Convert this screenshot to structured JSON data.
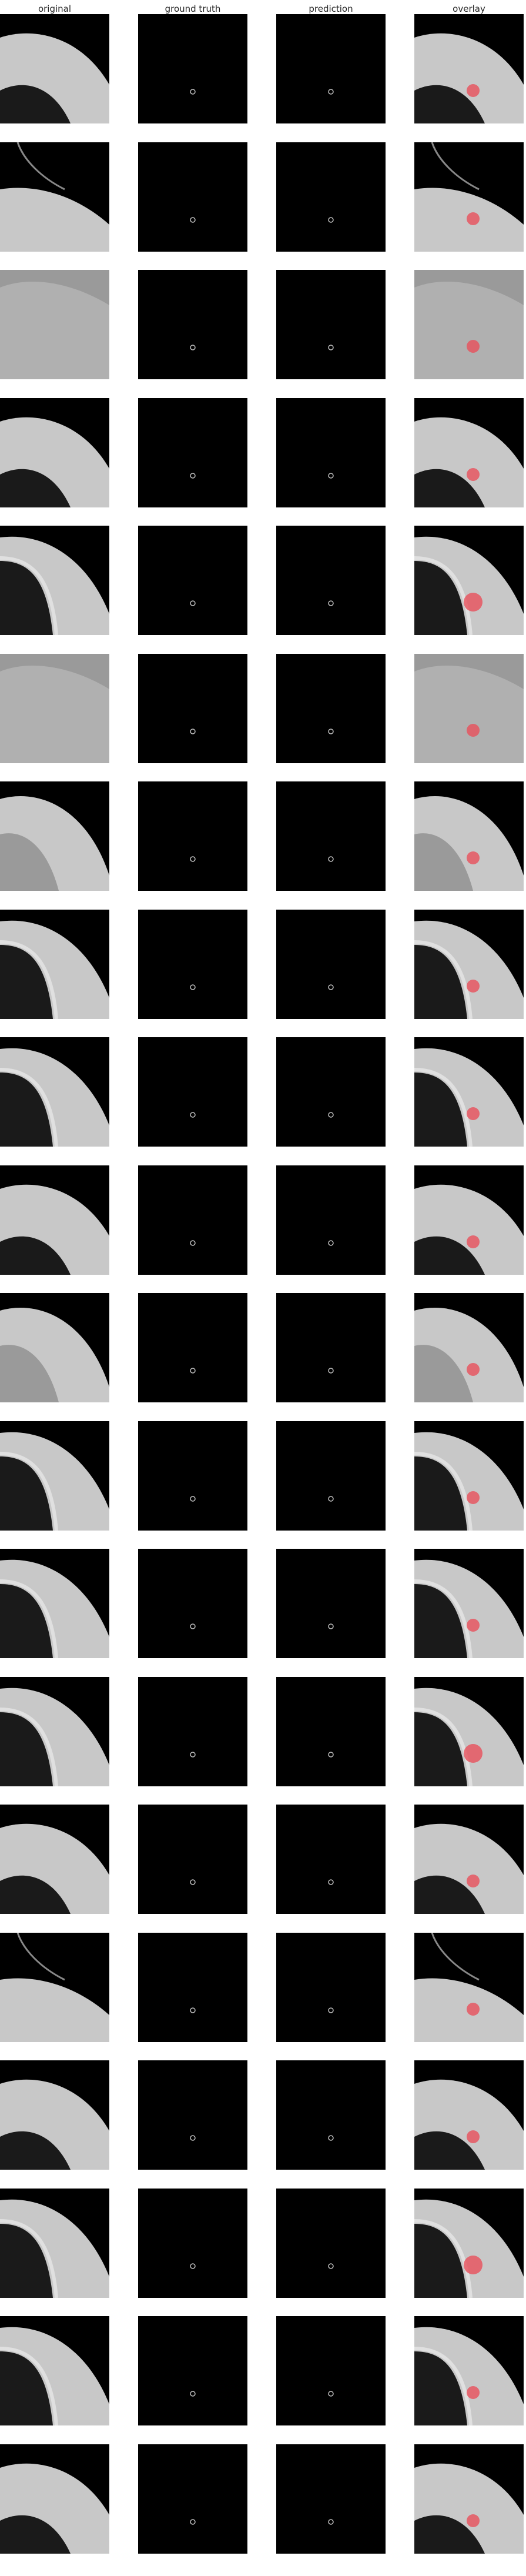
{
  "columns": {
    "original": "original",
    "ground_truth": "ground truth",
    "prediction": "prediction",
    "overlay": "overlay"
  },
  "colors": {
    "background": "#000000",
    "tissue_light": "#c8c8c8",
    "tissue_mid": "#9a9a9a",
    "lung_dark": "#1a1a1a",
    "marker_gray": "#bdbdbd",
    "overlay_marker": "#e8505b"
  },
  "rows": [
    {
      "variant": "a",
      "marker_size": "small"
    },
    {
      "variant": "b",
      "marker_size": "small"
    },
    {
      "variant": "c",
      "marker_size": "small"
    },
    {
      "variant": "a",
      "marker_size": "small"
    },
    {
      "variant": "d",
      "marker_size": "large"
    },
    {
      "variant": "c",
      "marker_size": "small"
    },
    {
      "variant": "e",
      "marker_size": "small"
    },
    {
      "variant": "d",
      "marker_size": "small"
    },
    {
      "variant": "d",
      "marker_size": "small"
    },
    {
      "variant": "a",
      "marker_size": "small"
    },
    {
      "variant": "e",
      "marker_size": "small"
    },
    {
      "variant": "d",
      "marker_size": "small"
    },
    {
      "variant": "d",
      "marker_size": "small"
    },
    {
      "variant": "d",
      "marker_size": "large"
    },
    {
      "variant": "a",
      "marker_size": "small"
    },
    {
      "variant": "b",
      "marker_size": "small"
    },
    {
      "variant": "a",
      "marker_size": "small"
    },
    {
      "variant": "d",
      "marker_size": "large"
    },
    {
      "variant": "d",
      "marker_size": "small"
    },
    {
      "variant": "a",
      "marker_size": "small"
    }
  ]
}
